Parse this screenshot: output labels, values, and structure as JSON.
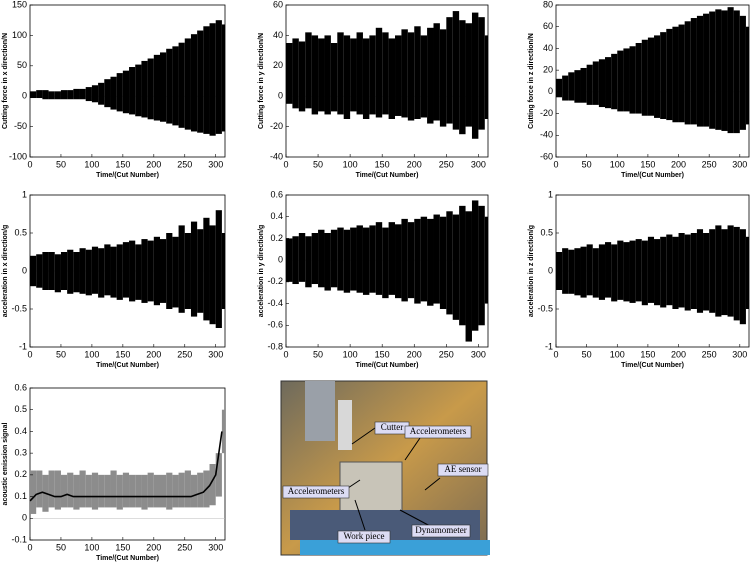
{
  "chart_data": [
    {
      "type": "line",
      "ylabel": "Cutting force in x direction/N",
      "xlabel": "Time/(Cut Number)",
      "x": [
        0,
        10,
        20,
        30,
        40,
        50,
        60,
        70,
        80,
        90,
        100,
        110,
        120,
        130,
        140,
        150,
        160,
        170,
        180,
        190,
        200,
        210,
        220,
        230,
        240,
        250,
        260,
        270,
        280,
        290,
        300,
        310
      ],
      "xlim": [
        0,
        315
      ],
      "xticks": [
        0,
        50,
        100,
        150,
        200,
        250,
        300
      ],
      "ylim": [
        -100,
        150
      ],
      "yticks": [
        -100,
        -50,
        0,
        50,
        100,
        150
      ],
      "series": [
        {
          "color": "#000000",
          "values": [
            8,
            10,
            10,
            8,
            8,
            10,
            10,
            12,
            12,
            15,
            18,
            22,
            28,
            32,
            38,
            42,
            48,
            52,
            58,
            62,
            68,
            72,
            78,
            82,
            88,
            95,
            102,
            108,
            115,
            120,
            125,
            118
          ]
        },
        {
          "color": "#000000",
          "values": [
            -3,
            -3,
            -5,
            -5,
            -5,
            -5,
            -5,
            -5,
            -5,
            -8,
            -10,
            -14,
            -18,
            -22,
            -25,
            -28,
            -30,
            -33,
            -35,
            -38,
            -40,
            -42,
            -45,
            -48,
            -52,
            -55,
            -58,
            -60,
            -62,
            -65,
            -62,
            -58
          ]
        }
      ]
    },
    {
      "type": "line",
      "ylabel": "Cutting force in y direction/N",
      "xlabel": "Time/(Cut Number)",
      "x": [
        0,
        10,
        20,
        30,
        40,
        50,
        60,
        70,
        80,
        90,
        100,
        110,
        120,
        130,
        140,
        150,
        160,
        170,
        180,
        190,
        200,
        210,
        220,
        230,
        240,
        250,
        260,
        270,
        280,
        290,
        300,
        310
      ],
      "xlim": [
        0,
        315
      ],
      "xticks": [
        0,
        50,
        100,
        150,
        200,
        250,
        300
      ],
      "ylim": [
        -40,
        60
      ],
      "yticks": [
        -40,
        -20,
        0,
        20,
        40,
        60
      ],
      "series": [
        {
          "color": "#000000",
          "values": [
            35,
            38,
            36,
            42,
            40,
            38,
            40,
            35,
            42,
            40,
            38,
            42,
            38,
            40,
            45,
            42,
            38,
            40,
            44,
            42,
            46,
            40,
            45,
            48,
            44,
            52,
            56,
            50,
            48,
            55,
            52,
            40
          ]
        },
        {
          "color": "#000000",
          "values": [
            -5,
            -8,
            -10,
            -8,
            -12,
            -10,
            -12,
            -10,
            -12,
            -15,
            -10,
            -12,
            -15,
            -12,
            -14,
            -12,
            -15,
            -13,
            -14,
            -16,
            -15,
            -14,
            -18,
            -16,
            -20,
            -18,
            -22,
            -25,
            -20,
            -28,
            -22,
            -15
          ]
        }
      ]
    },
    {
      "type": "line",
      "ylabel": "Cutting force in z direction/N",
      "xlabel": "Time/(Cut Number)",
      "x": [
        0,
        10,
        20,
        30,
        40,
        50,
        60,
        70,
        80,
        90,
        100,
        110,
        120,
        130,
        140,
        150,
        160,
        170,
        180,
        190,
        200,
        210,
        220,
        230,
        240,
        250,
        260,
        270,
        280,
        290,
        300,
        310
      ],
      "xlim": [
        0,
        315
      ],
      "xticks": [
        0,
        50,
        100,
        150,
        200,
        250,
        300
      ],
      "ylim": [
        -60,
        80
      ],
      "yticks": [
        -60,
        -40,
        -20,
        0,
        20,
        40,
        60,
        80
      ],
      "series": [
        {
          "color": "#000000",
          "values": [
            12,
            15,
            18,
            20,
            22,
            25,
            28,
            30,
            32,
            35,
            38,
            40,
            42,
            45,
            48,
            50,
            52,
            55,
            58,
            60,
            62,
            65,
            68,
            70,
            72,
            74,
            76,
            75,
            78,
            75,
            70,
            60
          ]
        },
        {
          "color": "#000000",
          "values": [
            -5,
            -8,
            -8,
            -10,
            -10,
            -12,
            -12,
            -14,
            -15,
            -16,
            -18,
            -18,
            -20,
            -20,
            -22,
            -22,
            -24,
            -25,
            -26,
            -28,
            -28,
            -30,
            -30,
            -32,
            -32,
            -34,
            -35,
            -36,
            -38,
            -38,
            -35,
            -30
          ]
        }
      ]
    },
    {
      "type": "line",
      "ylabel": "acceleration in x direction/g",
      "xlabel": "Time/(Cut Number)",
      "x": [
        0,
        10,
        20,
        30,
        40,
        50,
        60,
        70,
        80,
        90,
        100,
        110,
        120,
        130,
        140,
        150,
        160,
        170,
        180,
        190,
        200,
        210,
        220,
        230,
        240,
        250,
        260,
        270,
        280,
        290,
        300,
        310
      ],
      "xlim": [
        0,
        315
      ],
      "xticks": [
        0,
        50,
        100,
        150,
        200,
        250,
        300
      ],
      "ylim": [
        -1,
        1
      ],
      "yticks": [
        -1,
        -0.5,
        0,
        0.5,
        1
      ],
      "series": [
        {
          "color": "#000000",
          "values": [
            0.2,
            0.22,
            0.25,
            0.25,
            0.22,
            0.25,
            0.28,
            0.25,
            0.3,
            0.28,
            0.32,
            0.3,
            0.35,
            0.32,
            0.35,
            0.38,
            0.4,
            0.35,
            0.42,
            0.4,
            0.45,
            0.42,
            0.5,
            0.45,
            0.6,
            0.5,
            0.65,
            0.55,
            0.7,
            0.6,
            0.8,
            0.5
          ]
        },
        {
          "color": "#000000",
          "values": [
            -0.2,
            -0.22,
            -0.25,
            -0.25,
            -0.28,
            -0.25,
            -0.3,
            -0.28,
            -0.3,
            -0.32,
            -0.3,
            -0.35,
            -0.32,
            -0.35,
            -0.38,
            -0.35,
            -0.4,
            -0.38,
            -0.42,
            -0.4,
            -0.45,
            -0.42,
            -0.5,
            -0.48,
            -0.55,
            -0.5,
            -0.6,
            -0.55,
            -0.65,
            -0.7,
            -0.75,
            -0.5
          ]
        }
      ]
    },
    {
      "type": "line",
      "ylabel": "acceleration in y direction/g",
      "xlabel": "Time/(Cut Number)",
      "x": [
        0,
        10,
        20,
        30,
        40,
        50,
        60,
        70,
        80,
        90,
        100,
        110,
        120,
        130,
        140,
        150,
        160,
        170,
        180,
        190,
        200,
        210,
        220,
        230,
        240,
        250,
        260,
        270,
        280,
        290,
        300,
        310
      ],
      "xlim": [
        0,
        315
      ],
      "xticks": [
        0,
        50,
        100,
        150,
        200,
        250,
        300
      ],
      "ylim": [
        -0.8,
        0.6
      ],
      "yticks": [
        -0.8,
        -0.6,
        -0.4,
        -0.2,
        0,
        0.2,
        0.4,
        0.6
      ],
      "series": [
        {
          "color": "#000000",
          "values": [
            0.2,
            0.22,
            0.25,
            0.22,
            0.25,
            0.28,
            0.25,
            0.28,
            0.3,
            0.28,
            0.3,
            0.32,
            0.3,
            0.32,
            0.35,
            0.3,
            0.35,
            0.33,
            0.38,
            0.35,
            0.38,
            0.4,
            0.38,
            0.42,
            0.4,
            0.45,
            0.42,
            0.5,
            0.45,
            0.55,
            0.5,
            0.4
          ]
        },
        {
          "color": "#000000",
          "values": [
            -0.2,
            -0.22,
            -0.2,
            -0.25,
            -0.22,
            -0.25,
            -0.28,
            -0.25,
            -0.28,
            -0.3,
            -0.28,
            -0.3,
            -0.32,
            -0.3,
            -0.32,
            -0.35,
            -0.32,
            -0.35,
            -0.38,
            -0.35,
            -0.4,
            -0.38,
            -0.42,
            -0.4,
            -0.45,
            -0.5,
            -0.55,
            -0.6,
            -0.75,
            -0.65,
            -0.6,
            -0.4
          ]
        }
      ]
    },
    {
      "type": "line",
      "ylabel": "acceleration in z direction/g",
      "xlabel": "Time/(Cut Number)",
      "x": [
        0,
        10,
        20,
        30,
        40,
        50,
        60,
        70,
        80,
        90,
        100,
        110,
        120,
        130,
        140,
        150,
        160,
        170,
        180,
        190,
        200,
        210,
        220,
        230,
        240,
        250,
        260,
        270,
        280,
        290,
        300,
        310
      ],
      "xlim": [
        0,
        315
      ],
      "xticks": [
        0,
        50,
        100,
        150,
        200,
        250,
        300
      ],
      "ylim": [
        -1,
        1
      ],
      "yticks": [
        -1,
        -0.5,
        0,
        0.5,
        1
      ],
      "series": [
        {
          "color": "#000000",
          "values": [
            0.25,
            0.3,
            0.28,
            0.3,
            0.32,
            0.35,
            0.3,
            0.35,
            0.38,
            0.35,
            0.4,
            0.38,
            0.4,
            0.42,
            0.4,
            0.45,
            0.42,
            0.45,
            0.48,
            0.45,
            0.5,
            0.48,
            0.5,
            0.55,
            0.5,
            0.55,
            0.6,
            0.55,
            0.6,
            0.58,
            0.55,
            0.45
          ]
        },
        {
          "color": "#000000",
          "values": [
            -0.25,
            -0.3,
            -0.3,
            -0.32,
            -0.35,
            -0.32,
            -0.35,
            -0.38,
            -0.35,
            -0.4,
            -0.38,
            -0.4,
            -0.42,
            -0.4,
            -0.45,
            -0.42,
            -0.45,
            -0.48,
            -0.45,
            -0.5,
            -0.48,
            -0.52,
            -0.5,
            -0.55,
            -0.52,
            -0.55,
            -0.6,
            -0.58,
            -0.6,
            -0.65,
            -0.7,
            -0.5
          ]
        }
      ]
    },
    {
      "type": "line",
      "ylabel": "acoustic emission signal",
      "xlabel": "Time/(Cut Number)",
      "x": [
        0,
        10,
        20,
        30,
        40,
        50,
        60,
        70,
        80,
        90,
        100,
        110,
        120,
        130,
        140,
        150,
        160,
        170,
        180,
        190,
        200,
        210,
        220,
        230,
        240,
        250,
        260,
        270,
        280,
        290,
        300,
        310
      ],
      "xlim": [
        0,
        315
      ],
      "xticks": [
        0,
        50,
        100,
        150,
        200,
        250,
        300
      ],
      "ylim": [
        -0.1,
        0.6
      ],
      "yticks": [
        -0.1,
        0,
        0.1,
        0.2,
        0.3,
        0.4,
        0.5,
        0.6
      ],
      "series": [
        {
          "color": "#8c8c8c",
          "values": [
            0.22,
            0.22,
            0.2,
            0.22,
            0.22,
            0.2,
            0.21,
            0.2,
            0.22,
            0.2,
            0.21,
            0.2,
            0.2,
            0.22,
            0.2,
            0.21,
            0.2,
            0.2,
            0.2,
            0.21,
            0.2,
            0.2,
            0.21,
            0.2,
            0.21,
            0.22,
            0.2,
            0.21,
            0.22,
            0.25,
            0.3,
            0.5
          ]
        },
        {
          "color": "#8c8c8c",
          "values": [
            0.02,
            0.05,
            0.03,
            0.05,
            0.04,
            0.05,
            0.05,
            0.04,
            0.05,
            0.05,
            0.04,
            0.05,
            0.05,
            0.05,
            0.04,
            0.05,
            0.05,
            0.05,
            0.04,
            0.05,
            0.05,
            0.05,
            0.04,
            0.05,
            0.05,
            0.05,
            0.05,
            0.05,
            0.05,
            0.06,
            0.1,
            0.3
          ]
        },
        {
          "color": "#000000",
          "values": [
            0.08,
            0.11,
            0.12,
            0.11,
            0.1,
            0.1,
            0.11,
            0.1,
            0.1,
            0.1,
            0.1,
            0.1,
            0.1,
            0.1,
            0.1,
            0.1,
            0.1,
            0.1,
            0.1,
            0.1,
            0.1,
            0.1,
            0.1,
            0.1,
            0.1,
            0.1,
            0.1,
            0.11,
            0.12,
            0.15,
            0.2,
            0.4
          ]
        }
      ]
    }
  ],
  "photo": {
    "labels": [
      "Cutter",
      "Accelerometers",
      "AE sensor",
      "Accelerometers",
      "Work piece",
      "Dynamometer"
    ]
  }
}
